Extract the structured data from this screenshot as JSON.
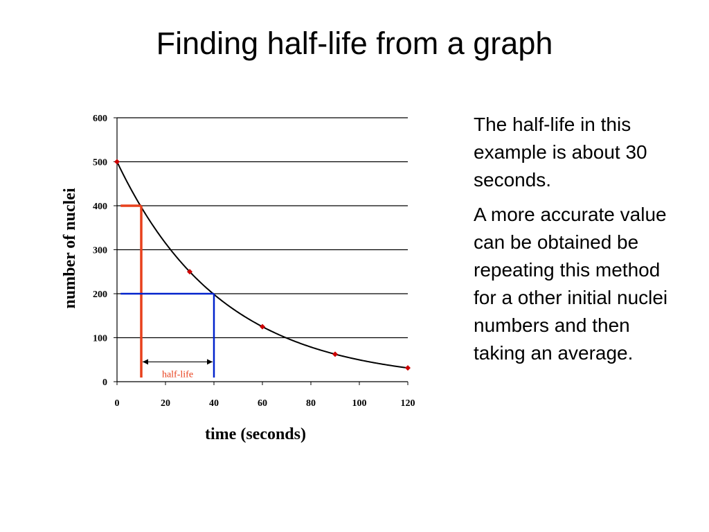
{
  "slide": {
    "title": "Finding half-life from a graph"
  },
  "side_text": {
    "paragraph_1": "The half-life in this example is about 30 seconds.",
    "paragraph_2": "A more accurate value can be obtained be repeating this method for a other initial nuclei numbers and then taking an average."
  },
  "chart_data": {
    "type": "scatter",
    "xlabel": "time (seconds)",
    "ylabel": "number of nuclei",
    "xlim": [
      0,
      120
    ],
    "ylim": [
      0,
      600
    ],
    "x_ticks": [
      0,
      20,
      40,
      60,
      80,
      100,
      120
    ],
    "y_ticks": [
      0,
      100,
      200,
      300,
      400,
      500,
      600
    ],
    "grid": "horizontal",
    "series": [
      {
        "points": [
          {
            "x": 0,
            "y": 500
          },
          {
            "x": 30,
            "y": 250
          },
          {
            "x": 60,
            "y": 125
          },
          {
            "x": 90,
            "y": 62.5
          },
          {
            "x": 120,
            "y": 31.25
          }
        ],
        "marker_color": "#cc0000"
      }
    ],
    "curve": {
      "type": "exponential_decay",
      "initial": 500,
      "half_life": 30,
      "color": "#000000"
    },
    "annotations": {
      "red_guide": {
        "y": 400,
        "x": 10,
        "color": "#e8401c"
      },
      "blue_guide": {
        "y": 200,
        "x": 40,
        "color": "#0022cc"
      },
      "arrow": {
        "from_x": 10,
        "to_x": 40,
        "y": 45,
        "label": "half-life",
        "label_color": "#e8401c"
      }
    }
  }
}
